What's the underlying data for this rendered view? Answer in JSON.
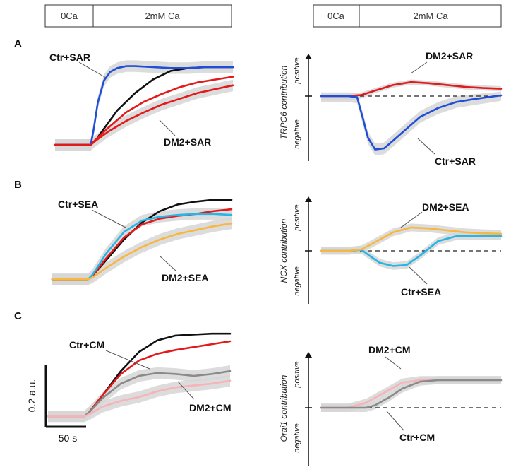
{
  "condition_bars": [
    {
      "segments": [
        {
          "label": "0Ca"
        },
        {
          "label": "2mM Ca"
        }
      ]
    },
    {
      "segments": [
        {
          "label": "0Ca"
        },
        {
          "label": "2mM Ca"
        }
      ]
    }
  ],
  "axis_words": {
    "positive": "positive",
    "negative": "negative"
  },
  "scale_bar": {
    "y_label": "0.2 a.u.",
    "y_value": 0.2,
    "x_label": "50 s",
    "x_value": 50
  },
  "colors": {
    "control_black": "#111111",
    "dm2_red": "#e31a1c",
    "sar_blue": "#1f4fd8",
    "sea_cyan": "#27b5e6",
    "sea_orange": "#f8b740",
    "cm_gray": "#8a8a8a",
    "cm_pink": "#f7b3b8",
    "sem_band": "#d6d6d6"
  },
  "chart_data": [
    {
      "type": "line",
      "panel": "A",
      "x_range": [
        0,
        200
      ],
      "y_range": [
        0,
        1
      ],
      "series": [
        {
          "name": "",
          "color": "#111111",
          "x": [
            0,
            40,
            45,
            55,
            70,
            90,
            110,
            130,
            150,
            170,
            200
          ],
          "y": [
            0.08,
            0.08,
            0.12,
            0.25,
            0.44,
            0.62,
            0.76,
            0.85,
            0.88,
            0.89,
            0.89
          ]
        },
        {
          "name": "",
          "color": "#e31a1c",
          "x": [
            0,
            40,
            45,
            60,
            80,
            100,
            120,
            140,
            160,
            180,
            200
          ],
          "y": [
            0.08,
            0.08,
            0.13,
            0.26,
            0.42,
            0.53,
            0.61,
            0.68,
            0.73,
            0.76,
            0.79
          ]
        },
        {
          "name": "Ctr+SAR",
          "color": "#1f4fd8",
          "band": 0.06,
          "x": [
            0,
            40,
            43,
            48,
            55,
            62,
            70,
            80,
            90,
            110,
            130,
            150,
            170,
            200
          ],
          "y": [
            0.08,
            0.08,
            0.22,
            0.52,
            0.75,
            0.84,
            0.88,
            0.9,
            0.9,
            0.89,
            0.88,
            0.88,
            0.89,
            0.89
          ]
        },
        {
          "name": "DM2+SAR",
          "color": "#e31a1c",
          "band": 0.06,
          "x": [
            0,
            40,
            45,
            60,
            80,
            100,
            120,
            140,
            160,
            180,
            200
          ],
          "y": [
            0.08,
            0.08,
            0.12,
            0.22,
            0.33,
            0.42,
            0.5,
            0.56,
            0.62,
            0.66,
            0.7
          ]
        }
      ]
    },
    {
      "type": "line",
      "panel": "A",
      "y_label": "TRPC6 contribution",
      "x_range": [
        0,
        200
      ],
      "y_range": [
        -1,
        1
      ],
      "series": [
        {
          "name": "DM2+SAR",
          "color": "#e31a1c",
          "band": 0.07,
          "x": [
            0,
            30,
            45,
            60,
            80,
            100,
            120,
            140,
            160,
            180,
            200
          ],
          "y": [
            0,
            0,
            0.03,
            0.15,
            0.3,
            0.38,
            0.35,
            0.3,
            0.25,
            0.22,
            0.2
          ]
        },
        {
          "name": "Ctr+SAR",
          "color": "#1f4fd8",
          "band": 0.1,
          "x": [
            0,
            30,
            40,
            46,
            52,
            60,
            70,
            80,
            95,
            110,
            130,
            150,
            170,
            200
          ],
          "y": [
            0,
            0,
            -0.02,
            -0.35,
            -0.7,
            -0.9,
            -0.88,
            -0.75,
            -0.55,
            -0.35,
            -0.2,
            -0.1,
            -0.05,
            0.02
          ]
        }
      ]
    },
    {
      "type": "line",
      "panel": "B",
      "x_range": [
        0,
        200
      ],
      "y_range": [
        0,
        1
      ],
      "series": [
        {
          "name": "",
          "color": "#111111",
          "x": [
            0,
            40,
            45,
            60,
            80,
            100,
            120,
            140,
            160,
            180,
            200
          ],
          "y": [
            0.08,
            0.08,
            0.12,
            0.28,
            0.5,
            0.68,
            0.8,
            0.87,
            0.9,
            0.92,
            0.92
          ]
        },
        {
          "name": "",
          "color": "#e31a1c",
          "x": [
            0,
            40,
            45,
            60,
            80,
            100,
            120,
            140,
            160,
            180,
            200
          ],
          "y": [
            0.08,
            0.08,
            0.12,
            0.3,
            0.52,
            0.66,
            0.72,
            0.75,
            0.77,
            0.8,
            0.82
          ]
        },
        {
          "name": "Ctr+SEA",
          "color": "#27b5e6",
          "band": 0.06,
          "x": [
            0,
            40,
            45,
            60,
            80,
            100,
            120,
            140,
            160,
            180,
            200
          ],
          "y": [
            0.08,
            0.08,
            0.13,
            0.35,
            0.58,
            0.7,
            0.74,
            0.76,
            0.77,
            0.77,
            0.76
          ]
        },
        {
          "name": "DM2+SEA",
          "color": "#f8b740",
          "band": 0.06,
          "x": [
            0,
            40,
            45,
            60,
            80,
            100,
            120,
            140,
            160,
            180,
            200
          ],
          "y": [
            0.08,
            0.08,
            0.1,
            0.2,
            0.32,
            0.42,
            0.5,
            0.56,
            0.6,
            0.64,
            0.67
          ]
        }
      ]
    },
    {
      "type": "line",
      "panel": "B",
      "y_label": "NCX contribution",
      "x_range": [
        0,
        200
      ],
      "y_range": [
        -1,
        1
      ],
      "series": [
        {
          "name": "Ctr+SEA",
          "color": "#27b5e6",
          "band": 0.08,
          "x": [
            0,
            30,
            45,
            55,
            65,
            80,
            95,
            110,
            130,
            150,
            170,
            200
          ],
          "y": [
            0,
            0,
            0.02,
            -0.12,
            -0.25,
            -0.32,
            -0.3,
            -0.1,
            0.2,
            0.3,
            0.3,
            0.3
          ]
        },
        {
          "name": "DM2+SEA",
          "color": "#f8b740",
          "band": 0.08,
          "x": [
            0,
            30,
            45,
            60,
            80,
            100,
            120,
            140,
            160,
            180,
            200
          ],
          "y": [
            0,
            0,
            0.03,
            0.18,
            0.38,
            0.48,
            0.46,
            0.42,
            0.38,
            0.36,
            0.35
          ]
        }
      ]
    },
    {
      "type": "line",
      "panel": "C",
      "x_range": [
        0,
        200
      ],
      "y_range": [
        0,
        1
      ],
      "series": [
        {
          "name": "",
          "color": "#111111",
          "x": [
            0,
            40,
            45,
            60,
            80,
            100,
            120,
            140,
            160,
            180,
            200
          ],
          "y": [
            0.08,
            0.08,
            0.12,
            0.3,
            0.55,
            0.75,
            0.87,
            0.92,
            0.93,
            0.94,
            0.94
          ]
        },
        {
          "name": "",
          "color": "#e31a1c",
          "x": [
            0,
            40,
            45,
            60,
            80,
            100,
            120,
            140,
            160,
            180,
            200
          ],
          "y": [
            0.08,
            0.08,
            0.12,
            0.3,
            0.52,
            0.66,
            0.73,
            0.77,
            0.8,
            0.83,
            0.86
          ]
        },
        {
          "name": "Ctr+CM",
          "color": "#8a8a8a",
          "band": 0.06,
          "x": [
            0,
            40,
            45,
            60,
            80,
            100,
            120,
            140,
            160,
            180,
            200
          ],
          "y": [
            0.08,
            0.08,
            0.12,
            0.27,
            0.42,
            0.5,
            0.53,
            0.52,
            0.5,
            0.52,
            0.55
          ]
        },
        {
          "name": "DM2+CM",
          "color": "#f7b3b8",
          "band": 0.06,
          "x": [
            0,
            40,
            45,
            60,
            80,
            100,
            120,
            140,
            160,
            180,
            200
          ],
          "y": [
            0.08,
            0.08,
            0.1,
            0.18,
            0.24,
            0.28,
            0.34,
            0.38,
            0.4,
            0.42,
            0.45
          ]
        }
      ]
    },
    {
      "type": "line",
      "panel": "C",
      "y_label": "Orai1 contribution",
      "x_range": [
        0,
        200
      ],
      "y_range": [
        -1,
        1
      ],
      "series": [
        {
          "name": "DM2+CM",
          "color": "#f7b3b8",
          "band": 0.08,
          "x": [
            0,
            30,
            50,
            70,
            90,
            110,
            130,
            150,
            170,
            200
          ],
          "y": [
            0,
            0,
            0.1,
            0.3,
            0.5,
            0.55,
            0.55,
            0.55,
            0.55,
            0.55
          ]
        },
        {
          "name": "Ctr+CM",
          "color": "#8a8a8a",
          "band": 0.08,
          "x": [
            0,
            50,
            60,
            75,
            90,
            110,
            130,
            150,
            170,
            200
          ],
          "y": [
            0,
            0,
            0.05,
            0.2,
            0.38,
            0.52,
            0.55,
            0.55,
            0.55,
            0.55
          ]
        }
      ]
    }
  ]
}
